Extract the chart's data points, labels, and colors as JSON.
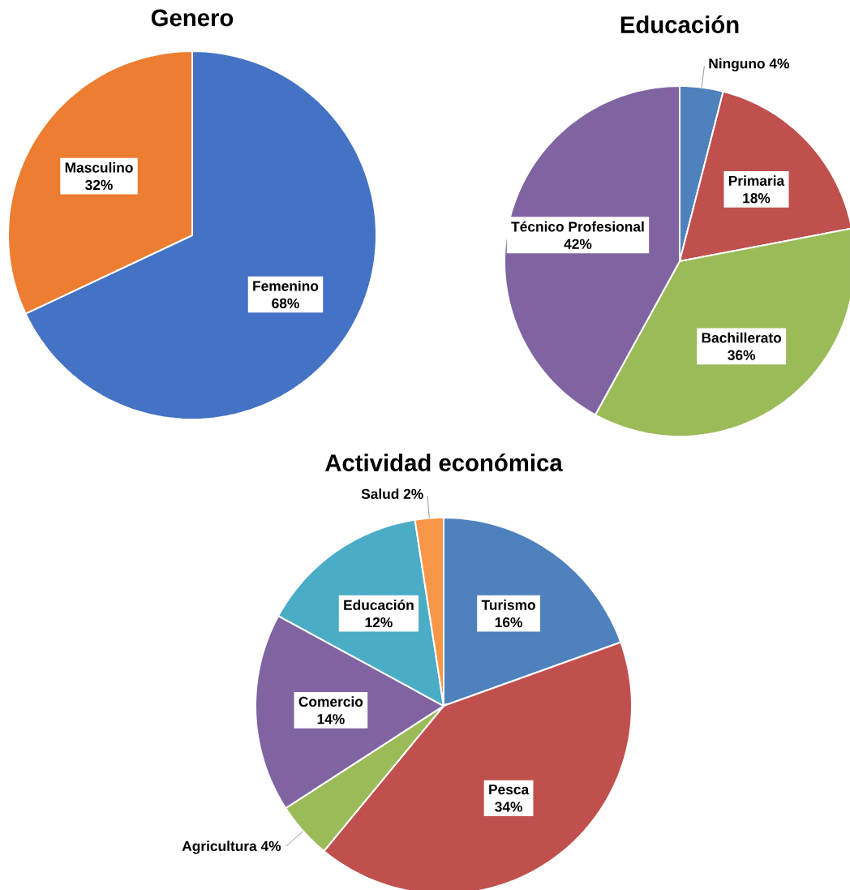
{
  "chart_data": [
    {
      "type": "pie",
      "title": "Genero",
      "categories": [
        "Femenino",
        "Masculino"
      ],
      "values": [
        68,
        32
      ],
      "value_labels": [
        "68%",
        "32%"
      ],
      "colors": [
        "#4472c4",
        "#ed7d31"
      ]
    },
    {
      "type": "pie",
      "title": "Educación",
      "categories": [
        "Ninguno",
        "Primaria",
        "Bachillerato",
        "Técnico Profesional"
      ],
      "values": [
        4,
        18,
        36,
        42
      ],
      "value_labels": [
        "4%",
        "18%",
        "36%",
        "42%"
      ],
      "colors": [
        "#4f81bd",
        "#c0504d",
        "#9bbb59",
        "#8064a2"
      ]
    },
    {
      "type": "pie",
      "title": "Actividad económica",
      "categories": [
        "Turismo",
        "Pesca",
        "Agricultura",
        "Comercio",
        "Educación",
        "Salud"
      ],
      "values": [
        16,
        34,
        4,
        14,
        12,
        2
      ],
      "value_labels": [
        "16%",
        "34%",
        "4%",
        "14%",
        "12%",
        "2%"
      ],
      "colors": [
        "#4f81bd",
        "#c0504d",
        "#9bbb59",
        "#8064a2",
        "#4bacc6",
        "#f79646"
      ]
    }
  ]
}
